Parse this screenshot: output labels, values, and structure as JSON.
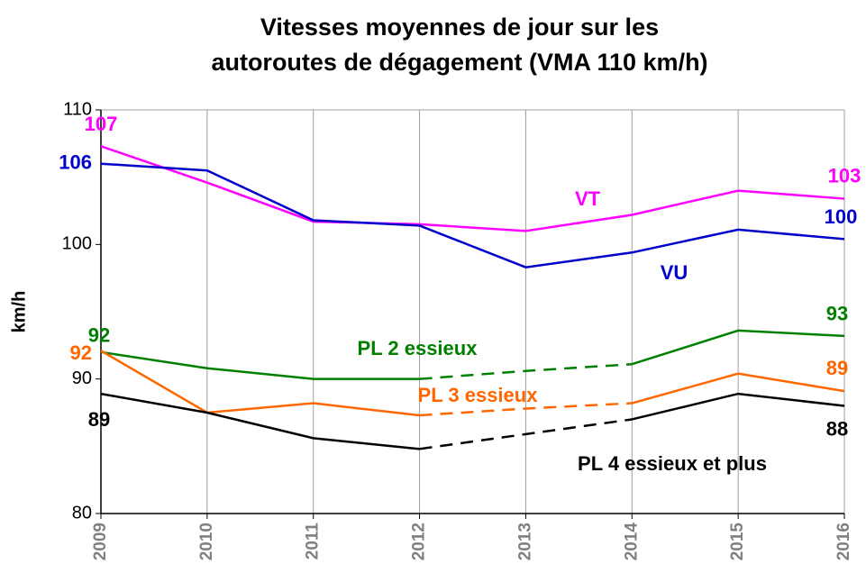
{
  "chart_data": {
    "type": "line",
    "title_lines": [
      "Vitesses moyennes de jour sur les",
      "autoroutes de dégagement (VMA 110 km/h)"
    ],
    "y_label": "km/h",
    "x": [
      "2009",
      "2010",
      "2011",
      "2012",
      "2013",
      "2014",
      "2015",
      "2016"
    ],
    "ylim": [
      80,
      110
    ],
    "yticks": [
      80,
      90,
      100,
      110
    ],
    "grid": "vertical",
    "series": [
      {
        "name": "VT",
        "color": "#ff00ff",
        "values": [
          107.3,
          104.6,
          101.7,
          101.5,
          101.0,
          102.2,
          104.0,
          103.4
        ],
        "value_labels": [
          "107",
          null,
          null,
          null,
          null,
          null,
          null,
          "103"
        ],
        "dashed_segments": []
      },
      {
        "name": "VU",
        "color": "#0000cc",
        "values": [
          106,
          105.5,
          101.8,
          101.4,
          98.3,
          99.4,
          101.1,
          100.4
        ],
        "value_labels": [
          "106",
          null,
          null,
          null,
          null,
          null,
          null,
          "100"
        ],
        "dashed_segments": []
      },
      {
        "name": "PL 2 essieux",
        "color": "#008000",
        "values": [
          92.0,
          90.8,
          90.0,
          90.0,
          90.6,
          91.1,
          93.6,
          93.2
        ],
        "value_labels": [
          "92",
          null,
          null,
          null,
          null,
          null,
          null,
          "93"
        ],
        "dashed_segments": [
          3,
          4
        ]
      },
      {
        "name": "PL 3 essieux",
        "color": "#ff6600",
        "values": [
          92.1,
          87.5,
          88.2,
          87.3,
          87.8,
          88.2,
          90.4,
          89.1
        ],
        "value_labels": [
          "92",
          null,
          null,
          null,
          null,
          null,
          null,
          "89"
        ],
        "dashed_segments": [
          3,
          4
        ]
      },
      {
        "name": "PL 4 essieux et plus",
        "color": "#000000",
        "values": [
          88.9,
          87.5,
          85.6,
          84.8,
          85.9,
          87.0,
          88.9,
          88.0
        ],
        "value_labels": [
          "89",
          null,
          null,
          null,
          null,
          null,
          null,
          "88"
        ],
        "dashed_segments": [
          3,
          4
        ]
      }
    ]
  }
}
